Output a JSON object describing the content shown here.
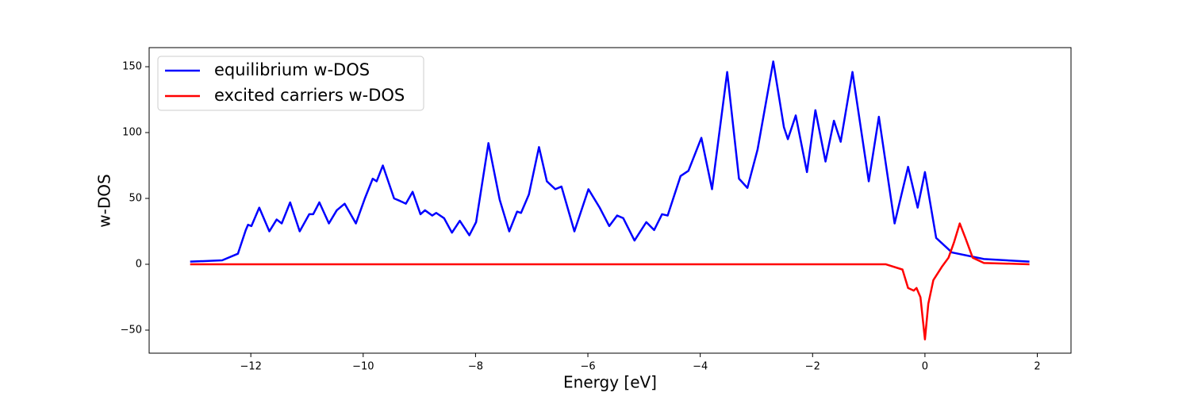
{
  "chart_data": {
    "type": "line",
    "xlabel": "Energy [eV]",
    "ylabel": "w-DOS",
    "xlim": [
      -13.81,
      2.6
    ],
    "ylim": [
      -67.5,
      164.5
    ],
    "xticks": [
      {
        "value": -12,
        "label": "−12"
      },
      {
        "value": -10,
        "label": "−10"
      },
      {
        "value": -8,
        "label": "−8"
      },
      {
        "value": -6,
        "label": "−6"
      },
      {
        "value": -4,
        "label": "−4"
      },
      {
        "value": -2,
        "label": "−2"
      },
      0,
      2
    ],
    "yticks": [
      {
        "value": -50,
        "label": "−50"
      },
      0,
      50,
      100,
      150
    ],
    "legend": "upper left",
    "series": [
      {
        "name": "equilibrium w-DOS",
        "color": "#0000ff",
        "x": [
          -13.08,
          -12.51,
          -12.23,
          -12.09,
          -12.05,
          -11.99,
          -11.85,
          -11.67,
          -11.54,
          -11.45,
          -11.3,
          -11.13,
          -10.96,
          -10.89,
          -10.78,
          -10.61,
          -10.47,
          -10.33,
          -10.13,
          -9.97,
          -9.83,
          -9.76,
          -9.65,
          -9.45,
          -9.34,
          -9.24,
          -9.12,
          -8.98,
          -8.9,
          -8.77,
          -8.7,
          -8.56,
          -8.42,
          -8.28,
          -8.11,
          -7.99,
          -7.77,
          -7.57,
          -7.4,
          -7.26,
          -7.19,
          -7.05,
          -6.87,
          -6.73,
          -6.58,
          -6.47,
          -6.24,
          -5.99,
          -5.79,
          -5.62,
          -5.48,
          -5.37,
          -5.17,
          -4.96,
          -4.82,
          -4.68,
          -4.58,
          -4.35,
          -4.21,
          -3.98,
          -3.79,
          -3.52,
          -3.31,
          -3.16,
          -2.98,
          -2.7,
          -2.51,
          -2.44,
          -2.3,
          -2.1,
          -1.95,
          -1.77,
          -1.62,
          -1.5,
          -1.29,
          -1.0,
          -0.82,
          -0.54,
          -0.3,
          -0.13,
          0.0,
          0.2,
          0.48,
          1.05,
          1.86
        ],
        "values": [
          2,
          3,
          8,
          26,
          30,
          29,
          43,
          25,
          34,
          31,
          47,
          25,
          38,
          38,
          47,
          31,
          41,
          46,
          31,
          50,
          65,
          63,
          75,
          50,
          48,
          46,
          55,
          38,
          41,
          37,
          39,
          35,
          24,
          33,
          22,
          32,
          92,
          49,
          25,
          40,
          39,
          53,
          89,
          63,
          57,
          59,
          25,
          57,
          43,
          29,
          37,
          35,
          18,
          32,
          26,
          38,
          37,
          67,
          71,
          96,
          57,
          146,
          65,
          58,
          87,
          154,
          104,
          95,
          113,
          70,
          117,
          78,
          109,
          93,
          146,
          63,
          112,
          31,
          74,
          43,
          70,
          20,
          9,
          4,
          2
        ]
      },
      {
        "name": "excited carriers w-DOS",
        "color": "#ff0000",
        "x": [
          -13.08,
          -0.7,
          -0.4,
          -0.3,
          -0.2,
          -0.15,
          -0.08,
          0.0,
          0.06,
          0.15,
          0.3,
          0.42,
          0.52,
          0.62,
          0.72,
          0.85,
          1.05,
          1.86
        ],
        "values": [
          0,
          0,
          -4,
          -18,
          -20,
          -18,
          -25,
          -57,
          -30,
          -12,
          -2,
          5,
          17,
          31,
          20,
          5,
          1,
          0
        ]
      }
    ]
  }
}
